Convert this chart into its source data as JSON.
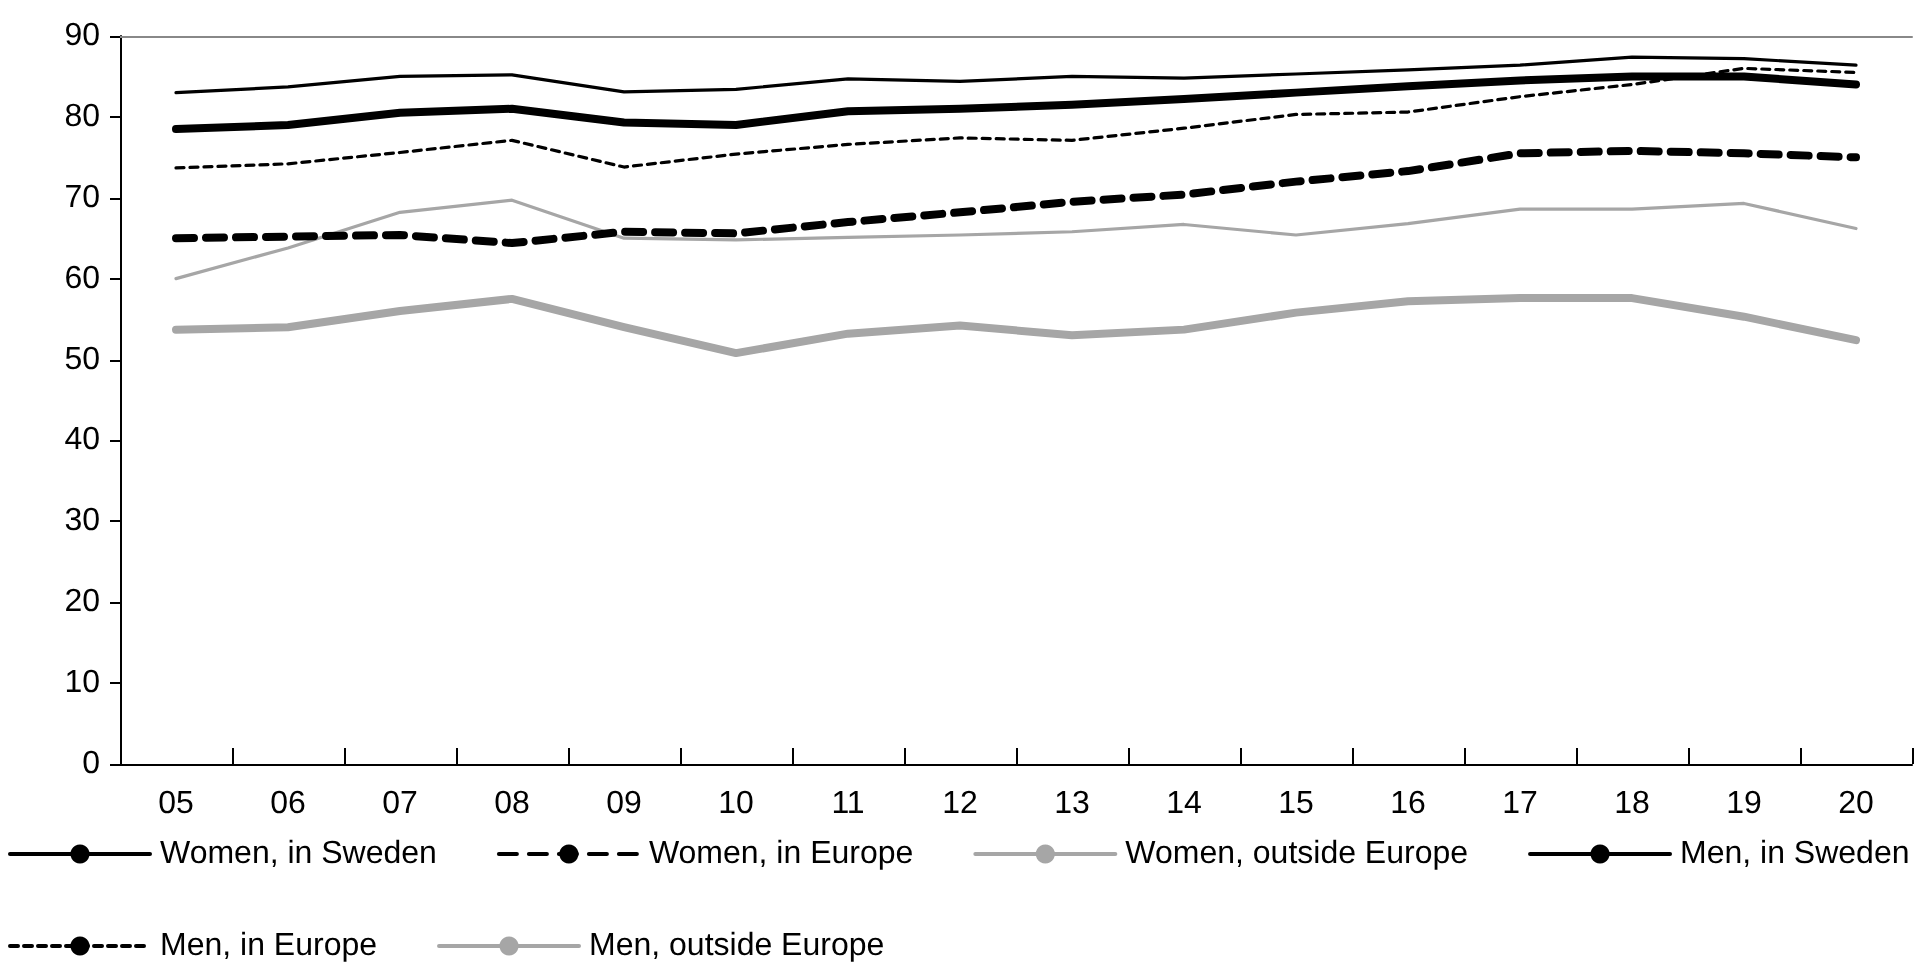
{
  "chart_data": {
    "type": "line",
    "categories": [
      "05",
      "06",
      "07",
      "08",
      "09",
      "10",
      "11",
      "12",
      "13",
      "14",
      "15",
      "16",
      "17",
      "18",
      "19",
      "20"
    ],
    "series": [
      {
        "name": "Women, in Sweden",
        "color": "#000000",
        "line_style": "solid",
        "values": [
          78.5,
          79,
          80.5,
          81,
          79.3,
          79,
          80.7,
          81,
          81.5,
          82.2,
          83,
          83.8,
          84.5,
          85,
          85,
          84
        ]
      },
      {
        "name": "Women, in Europe",
        "color": "#000000",
        "line_style": "dashed",
        "values": [
          65,
          65.2,
          65.4,
          64.4,
          65.8,
          65.6,
          67,
          68.2,
          69.5,
          70.4,
          72,
          73.3,
          75.5,
          75.8,
          75.5,
          75
        ]
      },
      {
        "name": "Women, outside Europe",
        "color": "#a6a6a6",
        "line_style": "solid",
        "values": [
          53.7,
          54,
          56,
          57.5,
          54,
          50.8,
          53.2,
          54.2,
          53,
          53.7,
          55.8,
          57.2,
          57.6,
          57.6,
          55.3,
          52.4
        ]
      },
      {
        "name": "Men, in Sweden",
        "color": "#000000",
        "line_style": "solid",
        "values": [
          83,
          83.7,
          85,
          85.2,
          83.1,
          83.4,
          84.7,
          84.4,
          85,
          84.8,
          85.3,
          85.8,
          86.4,
          87.4,
          87.2,
          86.4
        ]
      },
      {
        "name": "Men, in Europe",
        "color": "#000000",
        "line_style": "dashed",
        "values": [
          73.7,
          74.2,
          75.6,
          77.1,
          73.8,
          75.4,
          76.6,
          77.4,
          77.1,
          78.6,
          80.3,
          80.6,
          82.5,
          84,
          86,
          85.5
        ]
      },
      {
        "name": "Men, outside Europe",
        "color": "#a6a6a6",
        "line_style": "solid",
        "values": [
          60,
          63.8,
          68.2,
          69.7,
          65,
          64.8,
          65.1,
          65.4,
          65.8,
          66.7,
          65.4,
          66.8,
          68.6,
          68.6,
          69.3,
          66.2
        ]
      }
    ],
    "ylim": [
      0,
      90
    ],
    "yticks": [
      0,
      10,
      20,
      30,
      40,
      50,
      60,
      70,
      80,
      90
    ],
    "grid": false,
    "legend": "bottom",
    "marker": "none"
  }
}
